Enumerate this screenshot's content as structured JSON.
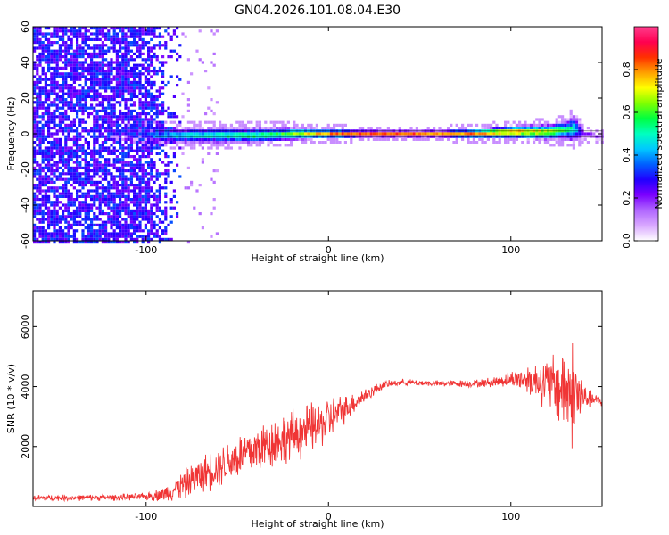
{
  "title": "GN04.2026.101.08.04.E30",
  "chart_data": [
    {
      "type": "heatmap",
      "xlabel": "Height of straight line (km)",
      "ylabel": "Frequency (Hz)",
      "xlim": [
        -162,
        150
      ],
      "ylim": [
        -60,
        60
      ],
      "x_ticks": [
        -100,
        0,
        100
      ],
      "y_ticks": [
        -60,
        -40,
        -20,
        0,
        20,
        40,
        60
      ],
      "colorbar": {
        "label": "Normalized spectral amplitude",
        "range": [
          0.0,
          1.0
        ],
        "ticks": [
          0.0,
          0.2,
          0.4,
          0.6,
          0.8
        ],
        "colors": [
          "#ffffff",
          "#d9a8ff",
          "#b066ff",
          "#7a00ff",
          "#2000ff",
          "#0060ff",
          "#00c8ff",
          "#00ffc0",
          "#00ff40",
          "#80ff00",
          "#ffff00",
          "#ffa000",
          "#ff3000",
          "#ff0050",
          "#ff3c8c"
        ]
      },
      "ridge_profile": {
        "x": [
          -162,
          -140,
          -120,
          -105,
          -95,
          -85,
          -60,
          -40,
          -20,
          0,
          20,
          40,
          60,
          80,
          100,
          120,
          130,
          135,
          140,
          150
        ],
        "center_hz": [
          0,
          0,
          0,
          0,
          -1,
          -1,
          -1,
          -1,
          0,
          0,
          0,
          0,
          0,
          0,
          1,
          1,
          2,
          3,
          0,
          -2
        ],
        "half_width_hz": [
          0,
          0,
          0,
          4,
          5,
          5,
          5,
          5,
          4,
          3,
          2,
          2,
          2,
          3,
          4,
          5,
          6,
          9,
          3,
          2
        ],
        "peak_amplitude": [
          0.05,
          0.1,
          0.15,
          0.2,
          0.4,
          0.5,
          0.55,
          0.6,
          0.65,
          0.8,
          0.85,
          0.85,
          0.8,
          0.8,
          0.9,
          0.75,
          0.6,
          0.5,
          0.2,
          0.2
        ]
      },
      "noise_region": {
        "x_range": [
          -162,
          -80
        ],
        "amplitude": [
          0.2,
          0.35
        ]
      }
    },
    {
      "type": "line",
      "xlabel": "Height of straight line (km)",
      "ylabel": "SNR (10 * v/v)",
      "xlim": [
        -162,
        150
      ],
      "ylim": [
        0,
        7200
      ],
      "x_ticks": [
        -100,
        0,
        100
      ],
      "y_ticks": [
        2000,
        4000,
        6000
      ],
      "series": [
        {
          "color": "#f03535",
          "x": [
            -162,
            -140,
            -120,
            -100,
            -90,
            -80,
            -70,
            -60,
            -50,
            -40,
            -30,
            -20,
            -10,
            -5,
            0,
            5,
            10,
            20,
            30,
            40,
            60,
            80,
            90,
            100,
            110,
            120,
            125,
            130,
            133,
            137,
            140,
            145,
            150
          ],
          "y": [
            280,
            290,
            300,
            330,
            420,
            700,
            1050,
            1350,
            1650,
            1900,
            2150,
            2350,
            2600,
            2700,
            2900,
            3100,
            3300,
            3700,
            4050,
            4150,
            4100,
            4100,
            4150,
            4250,
            4250,
            4100,
            4000,
            3900,
            3800,
            3700,
            3650,
            3550,
            3500
          ],
          "amp": [
            120,
            120,
            120,
            140,
            300,
            550,
            700,
            800,
            900,
            1000,
            1000,
            1000,
            1000,
            900,
            900,
            700,
            500,
            300,
            150,
            120,
            120,
            150,
            200,
            300,
            600,
            1000,
            1400,
            1800,
            2200,
            1600,
            500,
            250,
            200
          ]
        }
      ]
    }
  ]
}
